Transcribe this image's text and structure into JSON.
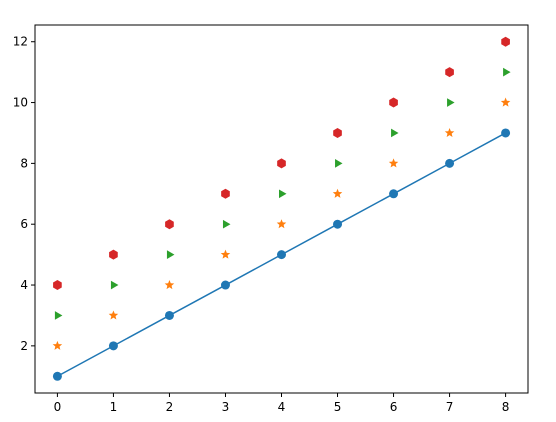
{
  "chart_data": {
    "type": "scatter",
    "x": [
      0,
      1,
      2,
      3,
      4,
      5,
      6,
      7,
      8
    ],
    "series": [
      {
        "color": "#1f77b4",
        "marker": "o",
        "line": true,
        "values": [
          1,
          2,
          3,
          4,
          5,
          6,
          7,
          8,
          9
        ]
      },
      {
        "color": "#ff7f0e",
        "marker": "*",
        "line": false,
        "values": [
          2,
          3,
          4,
          5,
          6,
          7,
          8,
          9,
          10
        ]
      },
      {
        "color": "#2ca02c",
        "marker": ">",
        "line": false,
        "values": [
          3,
          4,
          5,
          6,
          7,
          8,
          9,
          10,
          11
        ]
      },
      {
        "color": "#d62728",
        "marker": "h",
        "line": false,
        "values": [
          4,
          5,
          6,
          7,
          8,
          9,
          10,
          11,
          12
        ]
      }
    ],
    "xlim": [
      -0.4,
      8.4
    ],
    "ylim": [
      0.45,
      12.55
    ],
    "xticks": [
      0,
      1,
      2,
      3,
      4,
      5,
      6,
      7,
      8
    ],
    "yticks": [
      2,
      4,
      6,
      8,
      10,
      12
    ],
    "grid": false
  }
}
